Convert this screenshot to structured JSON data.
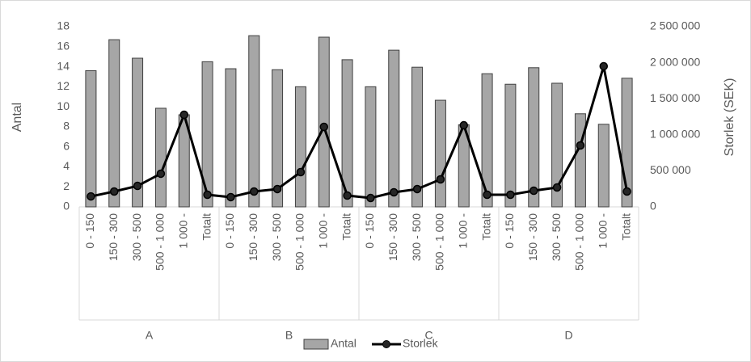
{
  "chart_data": {
    "type": "bar-line",
    "categories": [
      "0 - 150",
      "150 - 300",
      "300 - 500",
      "500 - 1 000",
      "1 000 -",
      "Totalt",
      "0 - 150",
      "150 - 300",
      "300 - 500",
      "500 - 1 000",
      "1 000 -",
      "Totalt",
      "0 - 150",
      "150 - 300",
      "300 - 500",
      "500 - 1 000",
      "1 000 -",
      "Totalt",
      "0 - 150",
      "150 - 300",
      "300 - 500",
      "500 - 1 000",
      "1 000 -",
      "Totalt"
    ],
    "groups": [
      "A",
      "B",
      "C",
      "D"
    ],
    "ylabel": "Antal",
    "y2label": "Storlek (SEK)",
    "ylim": [
      0,
      18
    ],
    "yticks": [
      0,
      2,
      4,
      6,
      8,
      10,
      12,
      14,
      16,
      18
    ],
    "y2lim": [
      0,
      2500000
    ],
    "y2ticks": [
      {
        "value": 0,
        "label": "0"
      },
      {
        "value": 500000,
        "label": "500 000"
      },
      {
        "value": 1000000,
        "label": "1 000 000"
      },
      {
        "value": 1500000,
        "label": "1 500 000"
      },
      {
        "value": 2000000,
        "label": "2 000 000"
      },
      {
        "value": 2500000,
        "label": "2 500 000"
      }
    ],
    "series": [
      {
        "name": "Antal",
        "type": "bar",
        "color": "#a6a6a6",
        "values": [
          13.6,
          16.7,
          14.85,
          9.85,
          9.2,
          14.5,
          13.8,
          17.1,
          13.7,
          12.0,
          16.95,
          14.7,
          12.0,
          15.65,
          13.95,
          10.65,
          8.2,
          13.3,
          12.25,
          13.9,
          12.35,
          9.3,
          8.25,
          12.85
        ]
      },
      {
        "name": "Storlek",
        "type": "line",
        "axis": "y2",
        "color": "#000000",
        "values": [
          145000,
          213000,
          291000,
          460000,
          1278000,
          168000,
          135000,
          213000,
          247000,
          482000,
          1110000,
          157000,
          123000,
          202000,
          247000,
          381000,
          1132000,
          168000,
          168000,
          224000,
          269000,
          852000,
          1951000,
          213000
        ]
      }
    ]
  }
}
